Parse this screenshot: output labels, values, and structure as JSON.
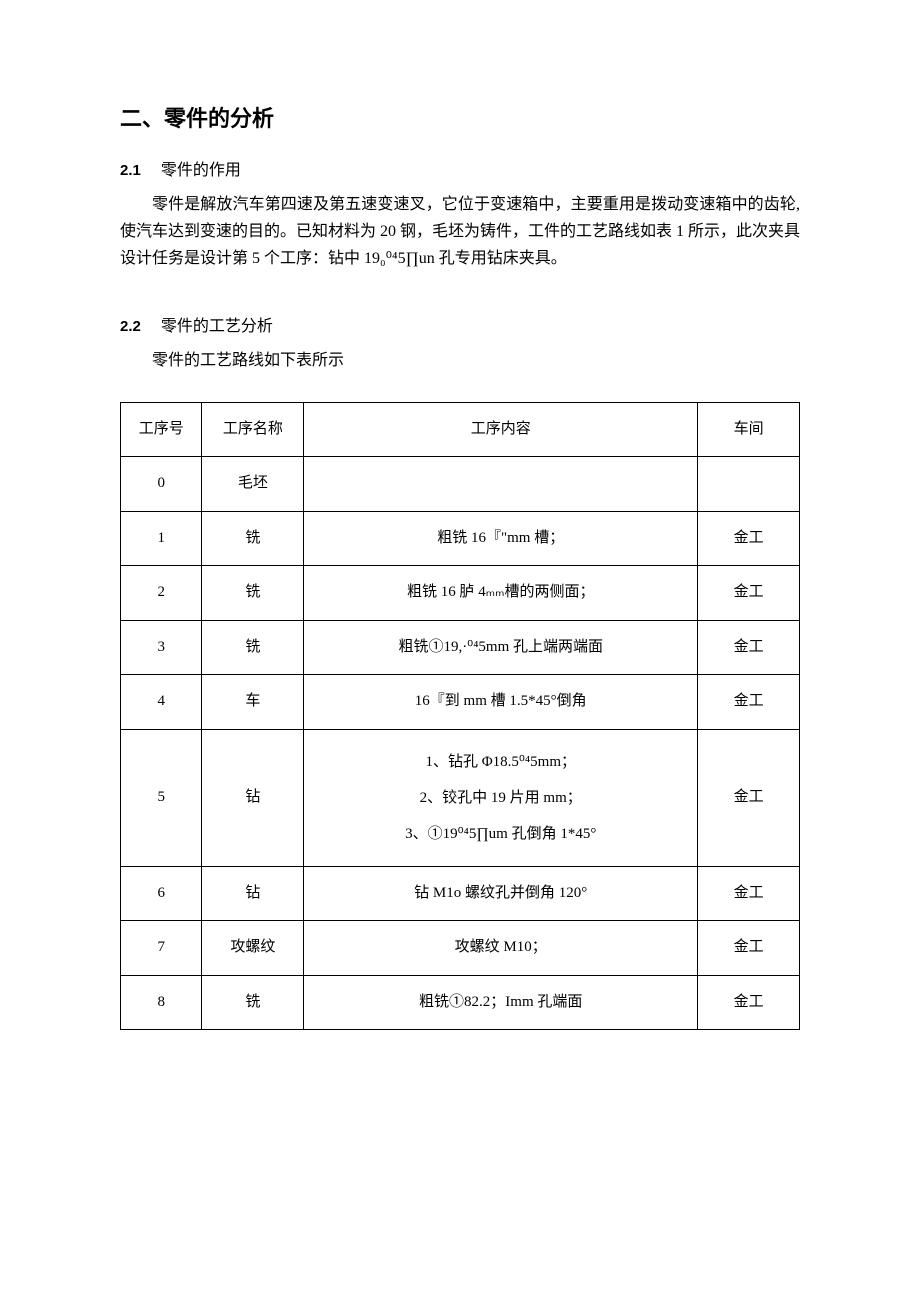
{
  "section_title": "二、零件的分析",
  "sub1_num": "2.1",
  "sub1_title": "零件的作用",
  "para1": "零件是解放汽车第四速及第五速变速叉，它位于变速箱中，主要重用是拨动变速箱中的齿轮, 使汽车达到变速的目的。已知材料为 20 钢，毛坯为铸件，工件的工艺路线如表 1 所示，此次夹具设计任务是设计第 5 个工序：钻中 19₀⁰⁴5∏un 孔专用钻床夹具。",
  "sub2_num": "2.2",
  "sub2_title": "零件的工艺分析",
  "sub2_caption": "零件的工艺路线如下表所示",
  "table": {
    "headers": {
      "c1": "工序号",
      "c2": "工序名称",
      "c3": "工序内容",
      "c4": "车间"
    },
    "rows": [
      {
        "num": "0",
        "name": "毛坯",
        "content": "",
        "shop": ""
      },
      {
        "num": "1",
        "name": "铣",
        "content": "粗铣 16『\"mm 槽；",
        "shop": "金工"
      },
      {
        "num": "2",
        "name": "铣",
        "content": "粗铣 16 胪 4ₘₘ槽的两侧面；",
        "shop": "金工"
      },
      {
        "num": "3",
        "name": "铣",
        "content": "粗铣①19,·⁰⁴5mm 孔上端两端面",
        "shop": "金工"
      },
      {
        "num": "4",
        "name": "车",
        "content": "16『到 mm 槽 1.5*45°倒角",
        "shop": "金工"
      },
      {
        "num": "5",
        "name": "钻",
        "content": "1、钻孔 Φ18.5⁰⁴5mm；\n2、铰孔中 19 片用 mm；\n3、①19⁰⁴5∏um 孔倒角 1*45°",
        "shop": "金工",
        "multiline": true
      },
      {
        "num": "6",
        "name": "钻",
        "content": "钻 M1o 螺纹孔并倒角 120°",
        "shop": "金工"
      },
      {
        "num": "7",
        "name": "攻螺纹",
        "content": "攻螺纹 M10；",
        "shop": "金工"
      },
      {
        "num": "8",
        "name": "铣",
        "content": "粗铣①82.2；Imm 孔端面",
        "shop": "金工"
      }
    ]
  }
}
